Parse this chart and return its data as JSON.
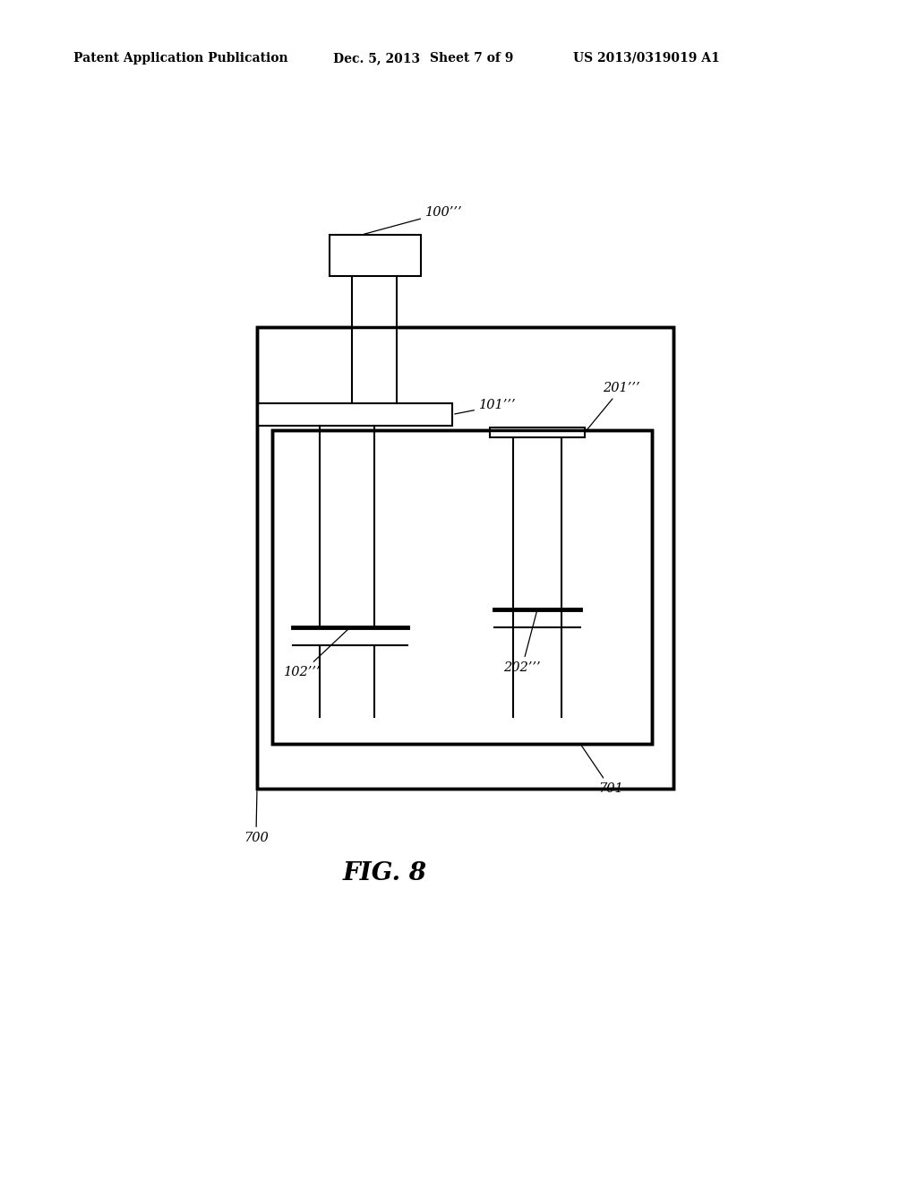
{
  "background_color": "#ffffff",
  "header_left": "Patent Application Publication",
  "header_mid": "Dec. 5, 2013   Sheet 7 of 9",
  "header_right": "US 2013/0319019 A1",
  "fig_label": "FIG. 8",
  "label_700": "700",
  "label_701": "701",
  "label_100": "100’’’",
  "label_101": "101’’’",
  "label_102": "102’’’",
  "label_201": "201’’’",
  "label_202": "202’’’",
  "line_color": "#000000",
  "lw": 1.5,
  "lw_thick": 2.5
}
